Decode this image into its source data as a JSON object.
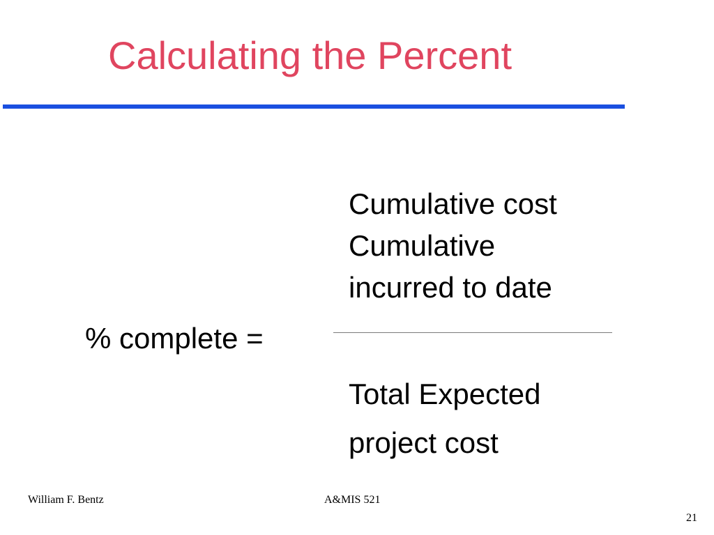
{
  "slide": {
    "title": "Calculating the Percent",
    "colors": {
      "title": "#e0455f",
      "rule": "#1a4fe0"
    }
  },
  "formula": {
    "lhs": "% complete =",
    "numerator": [
      "Cumulative cost",
      "Cumulative",
      "incurred to date"
    ],
    "denominator": [
      "Total Expected",
      "project cost"
    ]
  },
  "footer": {
    "author": "William F. Bentz",
    "course": "A&MIS 521",
    "page_number": "21"
  }
}
